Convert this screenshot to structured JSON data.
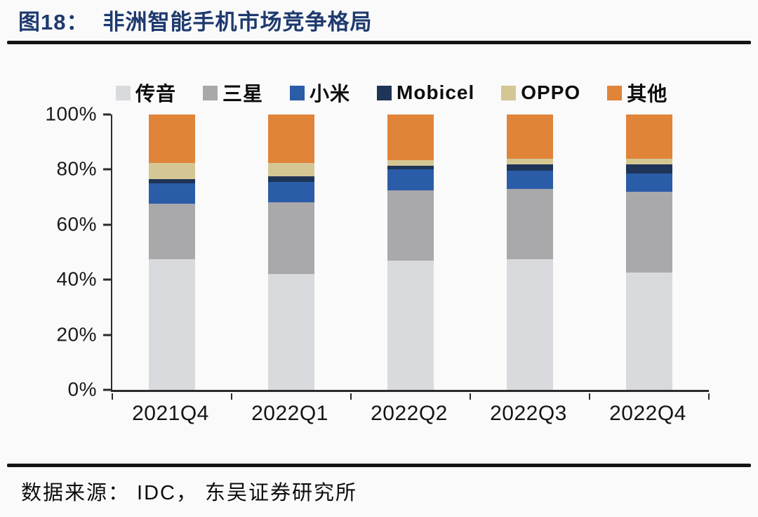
{
  "title": {
    "figure_label": "图18：",
    "text": "非洲智能手机市场竞争格局"
  },
  "footer": {
    "source": "数据来源： IDC， 东吴证券研究所"
  },
  "chart_data": {
    "type": "bar",
    "stacked": true,
    "title": "非洲智能手机市场竞争格局",
    "categories": [
      "2021Q4",
      "2022Q1",
      "2022Q2",
      "2022Q3",
      "2022Q4"
    ],
    "series": [
      {
        "name": "传音",
        "color": "#d8dadd",
        "values": [
          47.5,
          42.0,
          47.0,
          47.5,
          42.5
        ]
      },
      {
        "name": "三星",
        "color": "#a9a9ab",
        "values": [
          20.0,
          26.0,
          25.5,
          25.5,
          29.5
        ]
      },
      {
        "name": "小米",
        "color": "#2b5ca7",
        "values": [
          7.5,
          7.5,
          7.5,
          6.5,
          6.5
        ]
      },
      {
        "name": "Mobicel",
        "color": "#1e3557",
        "values": [
          1.5,
          2.0,
          1.5,
          2.5,
          3.5
        ]
      },
      {
        "name": "OPPO",
        "color": "#d5c794",
        "values": [
          6.0,
          5.0,
          2.0,
          2.0,
          2.0
        ]
      },
      {
        "name": "其他",
        "color": "#e0843a",
        "values": [
          17.5,
          17.5,
          16.5,
          16.0,
          16.0
        ]
      }
    ],
    "y_axis": {
      "ticks": [
        "100%",
        "80%",
        "60%",
        "40%",
        "20%",
        "0%"
      ],
      "min": 0,
      "max": 100,
      "unit": "%"
    },
    "xlabel": "",
    "ylabel": "",
    "grid": false,
    "legend_position": "top"
  }
}
